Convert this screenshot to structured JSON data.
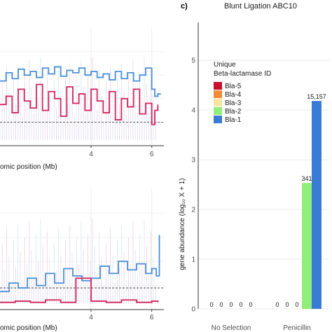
{
  "chart_data": [
    {
      "type": "line",
      "xlabel": "omic position (Mb)",
      "x_ticks": [
        4,
        6
      ],
      "xlim": [
        1.0,
        6.4
      ],
      "ylim": [
        0,
        1
      ],
      "threshold": 0.2,
      "series": [
        {
          "color": "#4a90d9",
          "x": [
            1.0,
            1.2,
            1.4,
            1.6,
            1.8,
            2.0,
            2.2,
            2.4,
            2.6,
            2.8,
            3.0,
            3.2,
            3.4,
            3.6,
            3.8,
            4.0,
            4.2,
            4.4,
            4.6,
            4.8,
            5.0,
            5.2,
            5.4,
            5.6,
            5.8,
            6.0,
            6.1,
            6.2,
            6.3
          ],
          "y": [
            0.55,
            0.62,
            0.57,
            0.65,
            0.6,
            0.63,
            0.58,
            0.66,
            0.61,
            0.67,
            0.59,
            0.64,
            0.62,
            0.66,
            0.6,
            0.63,
            0.58,
            0.61,
            0.56,
            0.63,
            0.57,
            0.62,
            0.55,
            0.6,
            0.66,
            0.48,
            0.42,
            0.44,
            0.44
          ]
        },
        {
          "color": "#d4245b",
          "x": [
            1.0,
            1.2,
            1.4,
            1.6,
            1.8,
            2.0,
            2.2,
            2.4,
            2.6,
            2.8,
            3.0,
            3.2,
            3.4,
            3.6,
            3.8,
            4.0,
            4.2,
            4.4,
            4.6,
            4.8,
            5.0,
            5.2,
            5.4,
            5.6,
            5.8,
            6.0,
            6.1,
            6.2
          ],
          "y": [
            0.35,
            0.42,
            0.28,
            0.48,
            0.38,
            0.32,
            0.52,
            0.3,
            0.46,
            0.4,
            0.25,
            0.5,
            0.36,
            0.44,
            0.3,
            0.48,
            0.38,
            0.28,
            0.46,
            0.22,
            0.4,
            0.33,
            0.48,
            0.27,
            0.36,
            0.18,
            0.3,
            0.35
          ]
        }
      ]
    },
    {
      "type": "line",
      "xlabel": "omic position (Mb)",
      "x_ticks": [
        4,
        6
      ],
      "xlim": [
        1.0,
        6.4
      ],
      "ylim": [
        0,
        1
      ],
      "threshold": 0.18,
      "series": [
        {
          "color": "#4a90d9",
          "x": [
            1.0,
            1.3,
            1.6,
            1.9,
            2.2,
            2.5,
            2.8,
            3.1,
            3.4,
            3.7,
            4.0,
            4.3,
            4.6,
            4.9,
            5.2,
            5.5,
            5.8,
            6.0,
            6.15,
            6.25
          ],
          "y": [
            0.15,
            0.22,
            0.18,
            0.26,
            0.2,
            0.3,
            0.22,
            0.34,
            0.28,
            0.24,
            0.26,
            0.36,
            0.3,
            0.4,
            0.33,
            0.38,
            0.3,
            0.34,
            0.28,
            0.62
          ]
        },
        {
          "color": "#d4245b",
          "x": [
            1.0,
            1.5,
            2.0,
            2.5,
            3.0,
            3.5,
            4.0,
            4.5,
            5.0,
            5.5,
            6.0,
            6.2
          ],
          "y": [
            0.06,
            0.07,
            0.06,
            0.08,
            0.06,
            0.26,
            0.07,
            0.06,
            0.08,
            0.06,
            0.07,
            0.06
          ]
        }
      ]
    },
    {
      "type": "bar",
      "panel": "c)",
      "title": "Blunt Ligation ABC10",
      "ylabel": "gene abundance (log₁₀ X + 1)",
      "ylim": [
        0,
        5
      ],
      "y_ticks": [
        0,
        1,
        2,
        3,
        4,
        5
      ],
      "categories": [
        "No Selection",
        "Penicillin"
      ],
      "legend": {
        "title_line1": "Unique",
        "title_line2": "Beta-lactamase ID",
        "placement": "top-left"
      },
      "series": [
        {
          "name": "Bla-5",
          "color": "#c8102e",
          "values": [
            0,
            0
          ],
          "labels": [
            "0",
            "0"
          ]
        },
        {
          "name": "Bla-4",
          "color": "#f28c38",
          "values": [
            0,
            0
          ],
          "labels": [
            "0",
            "0"
          ]
        },
        {
          "name": "Bla-3",
          "color": "#fbe3a0",
          "values": [
            0,
            0
          ],
          "labels": [
            "0",
            "0"
          ]
        },
        {
          "name": "Bla-2",
          "color": "#90ee7a",
          "values": [
            0,
            2.533
          ],
          "labels": [
            "0",
            "341"
          ]
        },
        {
          "name": "Bla-1",
          "color": "#3a7bd5",
          "values": [
            0,
            4.181
          ],
          "labels": [
            "0",
            "15,157"
          ]
        }
      ]
    }
  ]
}
